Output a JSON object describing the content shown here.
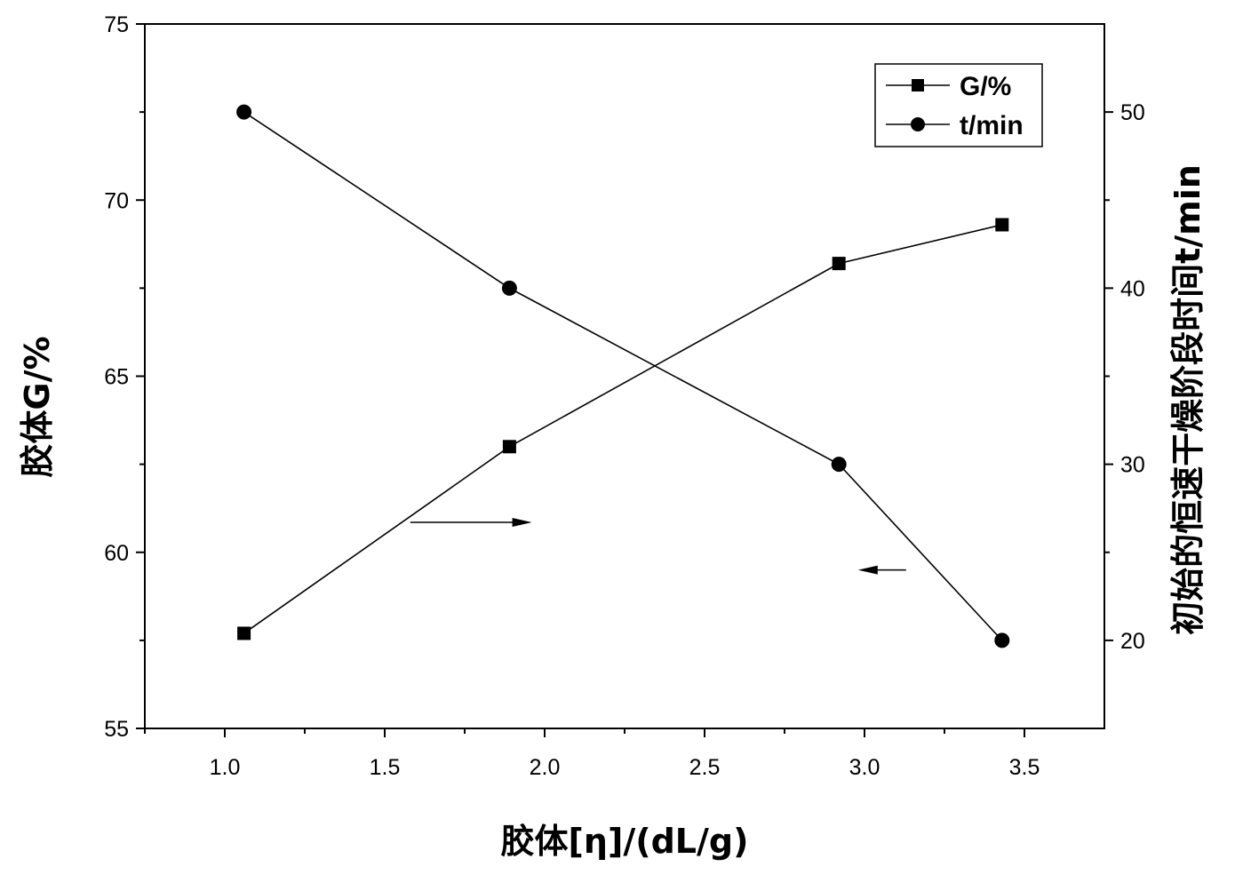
{
  "chart_data": {
    "type": "line",
    "xlabel": "胶体[η]/(dL/g)",
    "ylabel_left": "胶体G/%",
    "ylabel_right": "初始的恒速干燥阶段时间t/min",
    "xlim": [
      0.75,
      3.75
    ],
    "ylim_left": [
      55,
      75
    ],
    "ylim_right": [
      15,
      55
    ],
    "x_ticks": [
      1.0,
      1.5,
      2.0,
      2.5,
      3.0,
      3.5
    ],
    "x_tick_labels": [
      "1.0",
      "1.5",
      "2.0",
      "2.5",
      "3.0",
      "3.5"
    ],
    "y_left_ticks": [
      55,
      60,
      65,
      70,
      75
    ],
    "y_left_tick_labels": [
      "55",
      "60",
      "65",
      "70",
      "75"
    ],
    "y_right_ticks": [
      20,
      30,
      40,
      50
    ],
    "y_right_tick_labels": [
      "20",
      "30",
      "40",
      "50"
    ],
    "grid": false,
    "legend_position": "top-right",
    "series": [
      {
        "name": "G/%",
        "axis": "left",
        "marker": "square",
        "x": [
          1.06,
          1.89,
          2.92,
          3.43
        ],
        "y": [
          57.7,
          63.0,
          68.2,
          69.3
        ]
      },
      {
        "name": "t/min",
        "axis": "right",
        "marker": "circle",
        "x": [
          1.06,
          1.89,
          2.92,
          3.43
        ],
        "y": [
          50,
          40,
          30,
          20
        ]
      }
    ],
    "annotations": [
      {
        "type": "arrow",
        "direction": "right",
        "indicates_axis": "right",
        "from": [
          1.58,
          26.7
        ],
        "to": [
          1.96,
          26.7
        ]
      },
      {
        "type": "arrow",
        "direction": "left",
        "indicates_axis": "left",
        "from": [
          3.13,
          59.5
        ],
        "to": [
          2.98,
          59.5
        ]
      }
    ],
    "colors": {
      "line": "#000000",
      "background": "#ffffff"
    }
  }
}
